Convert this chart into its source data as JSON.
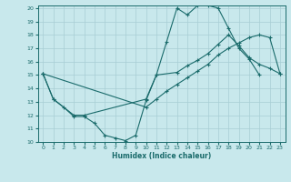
{
  "xlabel": "Humidex (Indice chaleur)",
  "xlim": [
    -0.5,
    23.5
  ],
  "ylim": [
    10,
    20.2
  ],
  "xticks": [
    0,
    1,
    2,
    3,
    4,
    5,
    6,
    7,
    8,
    9,
    10,
    11,
    12,
    13,
    14,
    15,
    16,
    17,
    18,
    19,
    20,
    21,
    22,
    23
  ],
  "yticks": [
    10,
    11,
    12,
    13,
    14,
    15,
    16,
    17,
    18,
    19,
    20
  ],
  "bg_color": "#c8e8ec",
  "grid_color": "#a8ced4",
  "line_color": "#1a6b6b",
  "line1_x": [
    0,
    1,
    2,
    3,
    4,
    5,
    6,
    7,
    8,
    9,
    10,
    11,
    12,
    13,
    14,
    15,
    16,
    17,
    18,
    19,
    20,
    21
  ],
  "line1_y": [
    15.1,
    13.2,
    12.6,
    11.9,
    11.9,
    11.4,
    10.5,
    10.3,
    10.1,
    10.5,
    13.1,
    15.0,
    17.5,
    20.0,
    19.5,
    20.2,
    20.2,
    20.0,
    18.5,
    17.0,
    16.2,
    15.0
  ],
  "line2_x": [
    0,
    1,
    3,
    4,
    10,
    11,
    13,
    14,
    15,
    16,
    17,
    18,
    19,
    20,
    21,
    22,
    23
  ],
  "line2_y": [
    15.1,
    13.2,
    12.0,
    12.0,
    13.2,
    15.0,
    15.2,
    15.7,
    16.1,
    16.6,
    17.3,
    18.0,
    17.2,
    16.3,
    15.8,
    15.5,
    15.1
  ],
  "line3_x": [
    0,
    10,
    11,
    12,
    13,
    14,
    15,
    16,
    17,
    18,
    19,
    20,
    21,
    22,
    23
  ],
  "line3_y": [
    15.1,
    12.6,
    13.2,
    13.8,
    14.3,
    14.8,
    15.3,
    15.8,
    16.5,
    17.0,
    17.4,
    17.8,
    18.0,
    17.8,
    15.1
  ]
}
